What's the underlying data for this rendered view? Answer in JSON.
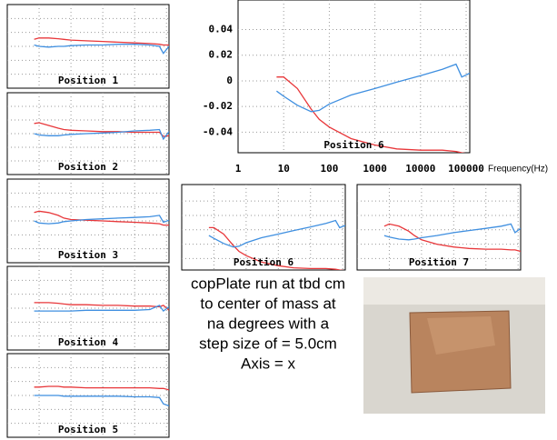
{
  "chart_data": [
    {
      "type": "line",
      "title": "Position 1",
      "log_x": true,
      "grid": true,
      "x": [
        7,
        10,
        20,
        40,
        60,
        100,
        300,
        1000,
        3000,
        10000,
        30000,
        60000,
        80000,
        120000
      ],
      "xlim": [
        1,
        120000
      ],
      "ylim": [
        -0.06,
        0.06
      ],
      "xticks": [
        1,
        10,
        100,
        1000,
        10000,
        100000
      ],
      "yticks": [
        -0.04,
        -0.02,
        0,
        0.02,
        0.04
      ],
      "series": [
        {
          "color": "#e8373a",
          "values": [
            0.01,
            0.012,
            0.012,
            0.011,
            0.01,
            0.009,
            0.008,
            0.007,
            0.006,
            0.005,
            0.004,
            0.003,
            0.002,
            0.002
          ]
        },
        {
          "color": "#3f8fe0",
          "values": [
            0.002,
            0.0,
            -0.001,
            0,
            0,
            0.001,
            0.002,
            0.002,
            0.003,
            0.003,
            0.002,
            0.0,
            -0.01,
            0.0
          ]
        }
      ]
    },
    {
      "type": "line",
      "title": "Position 2",
      "log_x": true,
      "grid": true,
      "x": [
        7,
        10,
        20,
        40,
        60,
        100,
        300,
        1000,
        3000,
        10000,
        30000,
        60000,
        80000,
        120000
      ],
      "xlim": [
        1,
        120000
      ],
      "ylim": [
        -0.06,
        0.06
      ],
      "xticks": [
        1,
        10,
        100,
        1000,
        10000,
        100000
      ],
      "yticks": [
        -0.04,
        -0.02,
        0,
        0.02,
        0.04
      ],
      "series": [
        {
          "color": "#e8373a",
          "values": [
            0.015,
            0.016,
            0.012,
            0.008,
            0.006,
            0.005,
            0.004,
            0.003,
            0.003,
            0.002,
            0.002,
            0.002,
            -0.004,
            -0.003
          ]
        },
        {
          "color": "#3f8fe0",
          "values": [
            0,
            -0.002,
            -0.003,
            -0.003,
            -0.002,
            -0.001,
            0,
            0.001,
            0.002,
            0.004,
            0.005,
            0.006,
            -0.008,
            0.003
          ]
        }
      ]
    },
    {
      "type": "line",
      "title": "Position 3",
      "log_x": true,
      "grid": true,
      "x": [
        7,
        10,
        20,
        40,
        60,
        100,
        300,
        1000,
        3000,
        10000,
        30000,
        60000,
        80000,
        120000
      ],
      "xlim": [
        1,
        120000
      ],
      "ylim": [
        -0.06,
        0.06
      ],
      "xticks": [
        1,
        10,
        100,
        1000,
        10000,
        100000
      ],
      "yticks": [
        -0.04,
        -0.02,
        0,
        0.02,
        0.04
      ],
      "series": [
        {
          "color": "#e8373a",
          "values": [
            0.012,
            0.014,
            0.012,
            0.008,
            0.004,
            0.002,
            0.001,
            0,
            -0.001,
            -0.002,
            -0.003,
            -0.004,
            -0.006,
            -0.006
          ]
        },
        {
          "color": "#3f8fe0",
          "values": [
            0,
            -0.003,
            -0.004,
            -0.003,
            -0.001,
            0,
            0.002,
            0.003,
            0.004,
            0.005,
            0.006,
            0.008,
            -0.002,
            0.001
          ]
        }
      ]
    },
    {
      "type": "line",
      "title": "Position 4",
      "log_x": true,
      "grid": true,
      "x": [
        7,
        10,
        20,
        40,
        60,
        100,
        300,
        1000,
        3000,
        10000,
        30000,
        60000,
        80000,
        120000
      ],
      "xlim": [
        1,
        120000
      ],
      "ylim": [
        -0.06,
        0.06
      ],
      "xticks": [
        1,
        10,
        100,
        1000,
        10000,
        100000
      ],
      "yticks": [
        -0.04,
        -0.02,
        0,
        0.02,
        0.04
      ],
      "series": [
        {
          "color": "#e8373a",
          "values": [
            0.008,
            0.008,
            0.008,
            0.007,
            0.006,
            0.005,
            0.005,
            0.004,
            0.004,
            0.003,
            0.003,
            0.002,
            0.004,
            -0.003
          ]
        },
        {
          "color": "#3f8fe0",
          "values": [
            -0.004,
            -0.004,
            -0.004,
            -0.004,
            -0.004,
            -0.004,
            -0.003,
            -0.003,
            -0.003,
            -0.003,
            -0.002,
            0.004,
            -0.004,
            0.002
          ]
        }
      ]
    },
    {
      "type": "line",
      "title": "Position 5",
      "log_x": true,
      "grid": true,
      "x": [
        7,
        10,
        20,
        40,
        60,
        100,
        300,
        1000,
        3000,
        10000,
        30000,
        60000,
        80000,
        120000
      ],
      "xlim": [
        1,
        120000
      ],
      "ylim": [
        -0.06,
        0.06
      ],
      "xticks": [
        1,
        10,
        100,
        1000,
        10000,
        100000
      ],
      "yticks": [
        -0.04,
        -0.02,
        0,
        0.02,
        0.04
      ],
      "series": [
        {
          "color": "#e8373a",
          "values": [
            0.012,
            0.012,
            0.013,
            0.013,
            0.012,
            0.012,
            0.011,
            0.011,
            0.011,
            0.011,
            0.011,
            0.01,
            0.01,
            0.008
          ]
        },
        {
          "color": "#3f8fe0",
          "values": [
            0,
            0,
            0,
            0,
            -0.001,
            -0.001,
            -0.001,
            -0.001,
            -0.001,
            -0.002,
            -0.002,
            -0.003,
            -0.012,
            -0.015
          ]
        }
      ]
    },
    {
      "type": "line",
      "title": "Position 6",
      "log_x": true,
      "grid": true,
      "x_label": "Frequency(Hz)",
      "x": [
        7,
        10,
        20,
        40,
        60,
        100,
        300,
        1000,
        3000,
        10000,
        30000,
        60000,
        80000,
        120000
      ],
      "xlim": [
        1,
        120000
      ],
      "ylim": [
        -0.056,
        0.063
      ],
      "xticks": [
        1,
        10,
        100,
        1000,
        10000,
        100000
      ],
      "yticks": [
        -0.04,
        -0.02,
        0,
        0.02,
        0.04
      ],
      "series": [
        {
          "color": "#e8373a",
          "values": [
            0.003,
            0.003,
            -0.006,
            -0.022,
            -0.03,
            -0.036,
            -0.045,
            -0.05,
            -0.053,
            -0.054,
            -0.054,
            -0.055,
            -0.056,
            -0.057
          ]
        },
        {
          "color": "#3f8fe0",
          "values": [
            -0.008,
            -0.012,
            -0.019,
            -0.024,
            -0.023,
            -0.018,
            -0.011,
            -0.006,
            -0.001,
            0.004,
            0.009,
            0.013,
            0.003,
            0.006
          ]
        }
      ]
    },
    {
      "type": "line",
      "title": "Position 6",
      "log_x": true,
      "grid": true,
      "x": [
        7,
        10,
        20,
        40,
        60,
        100,
        300,
        1000,
        3000,
        10000,
        30000,
        60000,
        80000,
        120000
      ],
      "xlim": [
        1,
        120000
      ],
      "ylim": [
        -0.056,
        0.063
      ],
      "xticks": [
        1,
        10,
        100,
        1000,
        10000,
        100000
      ],
      "yticks": [
        -0.04,
        -0.02,
        0,
        0.02,
        0.04
      ],
      "series": [
        {
          "color": "#e8373a",
          "values": [
            0.003,
            0.003,
            -0.006,
            -0.022,
            -0.03,
            -0.036,
            -0.045,
            -0.05,
            -0.053,
            -0.054,
            -0.054,
            -0.055,
            -0.056,
            -0.057
          ]
        },
        {
          "color": "#3f8fe0",
          "values": [
            -0.008,
            -0.012,
            -0.019,
            -0.024,
            -0.023,
            -0.018,
            -0.011,
            -0.006,
            -0.001,
            0.004,
            0.009,
            0.013,
            0.003,
            0.006
          ]
        }
      ]
    },
    {
      "type": "line",
      "title": "Position 7",
      "log_x": true,
      "grid": true,
      "x": [
        7,
        10,
        20,
        40,
        60,
        100,
        300,
        1000,
        3000,
        10000,
        30000,
        60000,
        80000,
        120000
      ],
      "xlim": [
        1,
        120000
      ],
      "ylim": [
        -0.056,
        0.063
      ],
      "xticks": [
        1,
        10,
        100,
        1000,
        10000,
        100000
      ],
      "yticks": [
        -0.04,
        -0.02,
        0,
        0.02,
        0.04
      ],
      "series": [
        {
          "color": "#e8373a",
          "values": [
            0.005,
            0.008,
            0.005,
            -0.002,
            -0.008,
            -0.014,
            -0.02,
            -0.024,
            -0.026,
            -0.027,
            -0.027,
            -0.028,
            -0.028,
            -0.03
          ]
        },
        {
          "color": "#3f8fe0",
          "values": [
            -0.008,
            -0.01,
            -0.013,
            -0.014,
            -0.013,
            -0.011,
            -0.008,
            -0.004,
            -0.001,
            0.002,
            0.005,
            0.008,
            -0.004,
            0.002
          ]
        }
      ]
    }
  ],
  "caption": [
    "copPlate run at tbd cm",
    "to center of mass at",
    "na degrees with a",
    "step size of = 5.0cm",
    "Axis = x"
  ]
}
